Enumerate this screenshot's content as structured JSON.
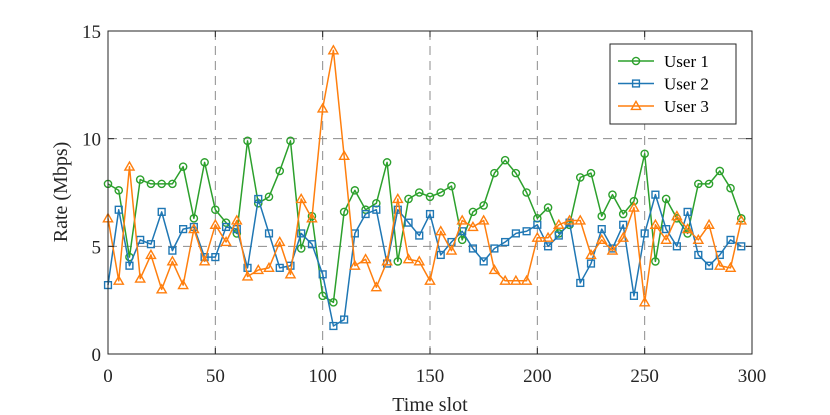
{
  "chart_data": {
    "type": "line",
    "title": "",
    "xlabel": "Time slot",
    "ylabel": "Rate (Mbps)",
    "xlim": [
      0,
      300
    ],
    "ylim": [
      0,
      15
    ],
    "xticks": [
      "0",
      "50",
      "100",
      "150",
      "200",
      "250",
      "300"
    ],
    "yticks": [
      "0",
      "5",
      "10",
      "15"
    ],
    "grid": true,
    "legend_position": "top-right",
    "x": [
      0,
      5,
      10,
      15,
      20,
      25,
      30,
      35,
      40,
      45,
      50,
      55,
      60,
      65,
      70,
      75,
      80,
      85,
      90,
      95,
      100,
      105,
      110,
      115,
      120,
      125,
      130,
      135,
      140,
      145,
      150,
      155,
      160,
      165,
      170,
      175,
      180,
      185,
      190,
      195,
      200,
      205,
      210,
      215,
      220,
      225,
      230,
      235,
      240,
      245,
      250,
      255,
      260,
      265,
      270,
      275,
      280,
      285,
      290,
      295
    ],
    "series": [
      {
        "name": "User 1",
        "color": "#2ca02c",
        "marker": "circle",
        "values": [
          7.9,
          7.6,
          4.5,
          8.1,
          7.9,
          7.9,
          7.9,
          8.7,
          6.3,
          8.9,
          6.7,
          6.1,
          5.6,
          9.9,
          7.0,
          7.3,
          8.5,
          9.9,
          4.9,
          6.4,
          2.7,
          2.4,
          6.6,
          7.6,
          6.7,
          7.0,
          8.9,
          4.3,
          7.2,
          7.5,
          7.3,
          7.5,
          7.8,
          5.3,
          6.6,
          6.9,
          8.4,
          9.0,
          8.4,
          7.5,
          6.3,
          6.8,
          5.6,
          6.0,
          8.2,
          8.4,
          6.4,
          7.4,
          6.5,
          7.1,
          9.3,
          4.3,
          7.2,
          6.3,
          5.6,
          7.9,
          7.9,
          8.5,
          7.7,
          6.3
        ]
      },
      {
        "name": "User 2",
        "color": "#1f77b4",
        "marker": "square",
        "values": [
          3.2,
          6.7,
          4.1,
          5.3,
          5.1,
          6.6,
          4.8,
          5.8,
          5.9,
          4.5,
          4.5,
          5.9,
          5.8,
          4.0,
          7.2,
          5.6,
          4.0,
          4.1,
          5.6,
          5.1,
          3.7,
          1.3,
          1.6,
          5.6,
          6.5,
          6.7,
          4.2,
          6.7,
          6.1,
          5.5,
          6.5,
          4.6,
          5.2,
          5.7,
          4.9,
          4.3,
          4.9,
          5.2,
          5.6,
          5.7,
          6.0,
          5.0,
          5.5,
          6.1,
          3.3,
          4.2,
          5.8,
          4.9,
          6.0,
          2.7,
          5.6,
          7.4,
          5.8,
          5.0,
          6.6,
          4.6,
          4.1,
          4.6,
          5.3,
          5.0
        ]
      },
      {
        "name": "User 3",
        "color": "#ff7f0e",
        "marker": "triangle",
        "values": [
          6.3,
          3.4,
          8.7,
          3.5,
          4.6,
          3.0,
          4.3,
          3.2,
          5.8,
          4.3,
          6.0,
          5.2,
          6.2,
          3.6,
          3.9,
          4.0,
          5.2,
          3.7,
          7.2,
          6.3,
          11.4,
          14.1,
          9.2,
          4.1,
          4.4,
          3.1,
          4.3,
          7.2,
          4.4,
          4.3,
          3.4,
          5.7,
          4.8,
          6.2,
          5.9,
          6.2,
          3.9,
          3.4,
          3.4,
          3.4,
          5.4,
          5.4,
          6.0,
          6.2,
          6.2,
          4.6,
          5.3,
          4.8,
          5.4,
          6.8,
          2.4,
          6.0,
          5.3,
          6.4,
          5.8,
          5.3,
          6.0,
          4.1,
          4.0,
          6.2
        ]
      }
    ]
  }
}
